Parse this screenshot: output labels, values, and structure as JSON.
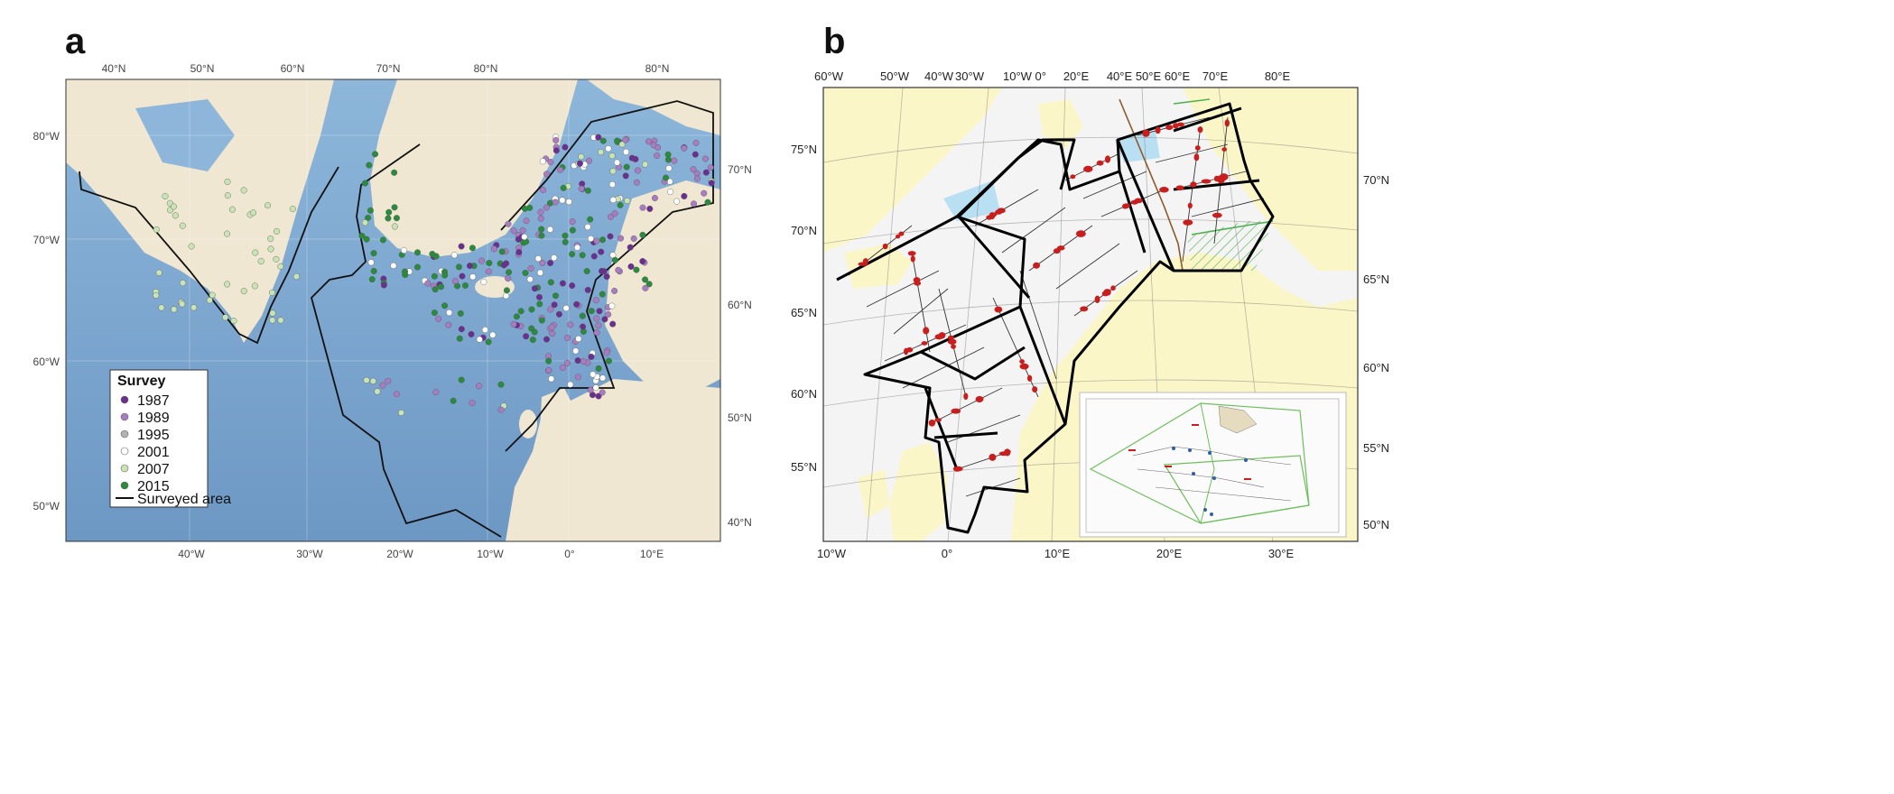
{
  "panels": [
    {
      "letter": "a",
      "top_ticks": [
        "40°N",
        "50°N",
        "60°N",
        "70°N",
        "80°N",
        "80°N"
      ],
      "left_ticks": [
        "80°W",
        "70°W",
        "60°W",
        "50°W"
      ],
      "right_ticks": [
        "70°N",
        "60°N",
        "50°N",
        "40°N"
      ],
      "bottom_ticks": [
        "40°W",
        "30°W",
        "20°W",
        "10°W",
        "0°",
        "10°E"
      ],
      "legend": {
        "title": "Survey",
        "items": [
          {
            "label": "1987",
            "color": "#6a2f91"
          },
          {
            "label": "1989",
            "color": "#a77cc0"
          },
          {
            "label": "1995",
            "color": "#b2b2b2"
          },
          {
            "label": "2001",
            "color": "#ffffff"
          },
          {
            "label": "2007",
            "color": "#c9e4b4"
          },
          {
            "label": "2015",
            "color": "#2a8a3e"
          }
        ],
        "line_label": "Surveyed area"
      }
    },
    {
      "letter": "b",
      "top_ticks": [
        "60°W",
        "50°W",
        "40°W",
        "30°W",
        "10°W 0°",
        "20°E",
        "40°E",
        "50°E",
        "60°E",
        "70°E",
        "80°E"
      ],
      "left_ticks": [
        "75°N",
        "70°N",
        "65°N",
        "60°N",
        "55°N"
      ],
      "right_ticks": [
        "70°N",
        "65°N",
        "60°N",
        "55°N",
        "50°N"
      ],
      "bottom_ticks": [
        "10°W",
        "0°",
        "10°E",
        "20°E",
        "30°E"
      ]
    }
  ],
  "colors": {
    "ocean": "#7fa9d0",
    "land": "#efe7d2",
    "land_b": "#fbf6c8",
    "route": "#c81e1e"
  }
}
